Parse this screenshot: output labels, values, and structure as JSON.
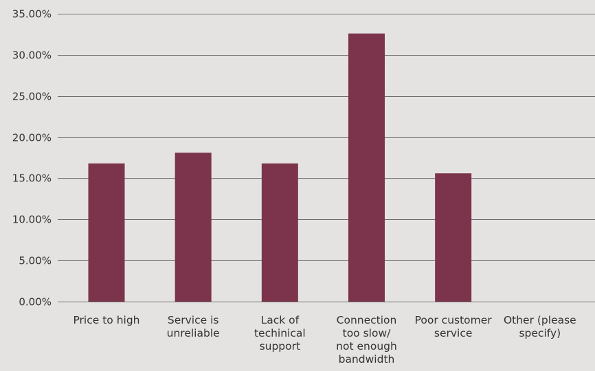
{
  "chart_data": {
    "type": "bar",
    "categories": [
      "Price to high",
      "Service is unreliable",
      "Lack of techinical support",
      "Connection too slow/ not enough bandwidth",
      "Poor customer service",
      "Other (please specify)"
    ],
    "category_lines": [
      [
        "Price to high"
      ],
      [
        "Service is",
        "unreliable"
      ],
      [
        "Lack of",
        "techinical",
        "support"
      ],
      [
        "Connection",
        "too slow/",
        "not enough",
        "bandwidth"
      ],
      [
        "Poor customer",
        "service"
      ],
      [
        "Other (please",
        "specify)"
      ]
    ],
    "values": [
      16.8,
      18.1,
      16.8,
      32.6,
      15.6,
      0
    ],
    "ylim": [
      0,
      35
    ],
    "yticks": [
      0,
      5,
      10,
      15,
      20,
      25,
      30,
      35
    ],
    "ytick_labels": [
      "0.00%",
      "5.00%",
      "10.00%",
      "15.00%",
      "20.00%",
      "25.00%",
      "30.00%",
      "35.00%"
    ],
    "title": "",
    "xlabel": "",
    "ylabel": "",
    "grid": true,
    "colors": {
      "bar": "#7b344c",
      "background": "#e5e3e1",
      "grid": "#6e6e6e",
      "text": "#333333"
    }
  }
}
